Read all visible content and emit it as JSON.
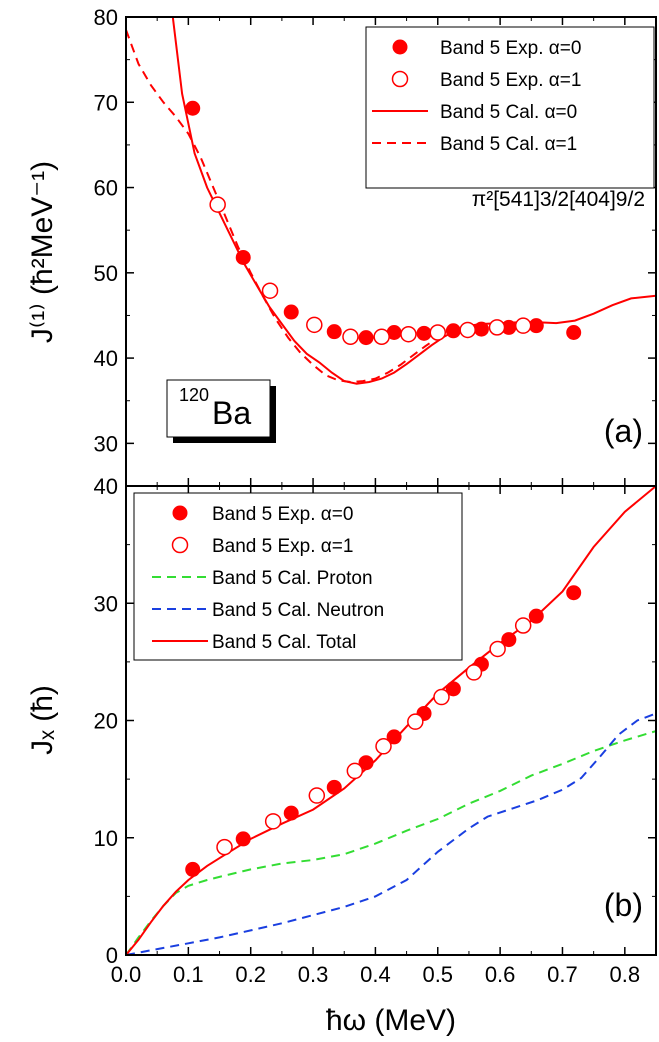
{
  "chart_data": [
    {
      "id": "panel-a",
      "type": "scatter",
      "panel_label": "(a)",
      "nucleus_mass": "120",
      "nucleus_symbol": "Ba",
      "configuration_label": "π²[541]3/2[404]9/2",
      "ylabel": "J⁽¹⁾ (ħ²MeV⁻¹)",
      "xlim": [
        0.0,
        0.85
      ],
      "ylim": [
        25,
        80
      ],
      "yticks": [
        30,
        40,
        50,
        60,
        70,
        80
      ],
      "legend_position": "top-right",
      "series": [
        {
          "name": "Band 5 Exp. α=0",
          "kind": "filled-circle",
          "color": "#ff0000",
          "x": [
            0.107,
            0.188,
            0.265,
            0.334,
            0.385,
            0.43,
            0.478,
            0.525,
            0.57,
            0.614,
            0.658,
            0.718
          ],
          "y": [
            69.3,
            51.8,
            45.4,
            43.1,
            42.4,
            43.0,
            42.9,
            43.2,
            43.4,
            43.6,
            43.8,
            43.0
          ]
        },
        {
          "name": "Band 5 Exp. α=1",
          "kind": "open-circle",
          "color": "#ff0000",
          "x": [
            0.147,
            0.231,
            0.302,
            0.36,
            0.41,
            0.453,
            0.5,
            0.548,
            0.595,
            0.637
          ],
          "y": [
            58.0,
            47.9,
            43.9,
            42.5,
            42.5,
            42.8,
            43.0,
            43.3,
            43.6,
            43.8
          ]
        },
        {
          "name": "Band 5 Cal.  α=0",
          "kind": "solid-line",
          "color": "#ff0000",
          "x": [
            0.075,
            0.09,
            0.11,
            0.13,
            0.15,
            0.17,
            0.19,
            0.21,
            0.23,
            0.25,
            0.27,
            0.29,
            0.31,
            0.33,
            0.35,
            0.37,
            0.39,
            0.41,
            0.43,
            0.45,
            0.47,
            0.49,
            0.51,
            0.53,
            0.55,
            0.57,
            0.6,
            0.63,
            0.66,
            0.69,
            0.72,
            0.75,
            0.78,
            0.81,
            0.85
          ],
          "y": [
            80.0,
            71.0,
            64.0,
            60.0,
            57.0,
            54.0,
            51.0,
            48.5,
            46.0,
            44.0,
            42.0,
            40.5,
            39.5,
            38.3,
            37.3,
            37.0,
            37.2,
            37.6,
            38.3,
            39.3,
            40.4,
            41.5,
            42.5,
            43.3,
            43.8,
            44.0,
            44.1,
            44.2,
            44.2,
            44.1,
            44.4,
            45.2,
            46.2,
            47.0,
            47.3
          ]
        },
        {
          "name": "Band 5 Cal.  α=1",
          "kind": "dashed-line",
          "color": "#ff0000",
          "x": [
            0.0,
            0.01,
            0.02,
            0.04,
            0.06,
            0.08,
            0.1,
            0.12,
            0.14,
            0.16,
            0.18,
            0.2,
            0.22,
            0.24,
            0.26,
            0.28,
            0.3,
            0.32,
            0.34,
            0.36,
            0.38,
            0.4,
            0.42,
            0.44,
            0.46,
            0.48,
            0.5,
            0.52,
            0.55,
            0.58,
            0.61
          ],
          "y": [
            78.5,
            76.5,
            74.5,
            72.0,
            70.0,
            68.3,
            66.3,
            63.5,
            60.0,
            56.5,
            53.0,
            50.0,
            47.2,
            44.6,
            42.4,
            40.6,
            39.2,
            38.0,
            37.4,
            37.2,
            37.3,
            37.6,
            38.3,
            39.2,
            40.3,
            41.4,
            42.4,
            43.2,
            43.8,
            44.1,
            44.2
          ]
        }
      ]
    },
    {
      "id": "panel-b",
      "type": "scatter",
      "panel_label": "(b)",
      "xlabel": "ħω  (MeV)",
      "ylabel": "Jₓ (ħ)",
      "xlim": [
        0.0,
        0.85
      ],
      "ylim": [
        0,
        40
      ],
      "xticks": [
        0.0,
        0.1,
        0.2,
        0.3,
        0.4,
        0.5,
        0.6,
        0.7,
        0.8
      ],
      "yticks": [
        0,
        10,
        20,
        30,
        40
      ],
      "legend_position": "top-left",
      "series": [
        {
          "name": "Band 5 Exp. α=0",
          "kind": "filled-circle",
          "color": "#ff0000",
          "x": [
            0.107,
            0.188,
            0.265,
            0.334,
            0.385,
            0.43,
            0.478,
            0.525,
            0.57,
            0.614,
            0.658,
            0.718
          ],
          "y": [
            7.3,
            9.9,
            12.1,
            14.3,
            16.4,
            18.6,
            20.6,
            22.7,
            24.8,
            26.9,
            28.9,
            30.9
          ]
        },
        {
          "name": "Band 5 Exp. α=1",
          "kind": "open-circle",
          "color": "#ff0000",
          "x": [
            0.158,
            0.236,
            0.306,
            0.367,
            0.413,
            0.464,
            0.506,
            0.558,
            0.596,
            0.637
          ],
          "y": [
            9.2,
            11.4,
            13.6,
            15.7,
            17.8,
            19.9,
            22.0,
            24.1,
            26.1,
            28.1
          ]
        },
        {
          "name": "Band 5 Cal. Proton",
          "kind": "dashed-line",
          "color": "#33dd33",
          "x": [
            0.0,
            0.02,
            0.04,
            0.06,
            0.08,
            0.1,
            0.13,
            0.16,
            0.2,
            0.25,
            0.3,
            0.35,
            0.4,
            0.45,
            0.5,
            0.55,
            0.6,
            0.65,
            0.7,
            0.75,
            0.8,
            0.85
          ],
          "y": [
            0.0,
            1.5,
            2.9,
            4.2,
            5.3,
            5.9,
            6.4,
            6.8,
            7.3,
            7.8,
            8.1,
            8.6,
            9.5,
            10.6,
            11.6,
            12.9,
            14.0,
            15.3,
            16.3,
            17.4,
            18.3,
            19.1
          ]
        },
        {
          "name": "Band 5 Cal. Neutron",
          "kind": "dashed-line",
          "color": "#1a3fe0",
          "x": [
            0.0,
            0.05,
            0.1,
            0.15,
            0.2,
            0.25,
            0.3,
            0.35,
            0.4,
            0.45,
            0.5,
            0.55,
            0.58,
            0.62,
            0.66,
            0.7,
            0.73,
            0.76,
            0.79,
            0.82,
            0.85
          ],
          "y": [
            0.0,
            0.5,
            1.0,
            1.5,
            2.1,
            2.7,
            3.4,
            4.1,
            5.0,
            6.4,
            8.8,
            10.8,
            11.8,
            12.5,
            13.2,
            14.1,
            15.1,
            16.9,
            18.8,
            20.0,
            20.6
          ]
        },
        {
          "name": "Band 5 Cal. Total",
          "kind": "solid-line",
          "color": "#ff0000",
          "x": [
            0.0,
            0.02,
            0.04,
            0.06,
            0.08,
            0.1,
            0.13,
            0.16,
            0.2,
            0.25,
            0.3,
            0.35,
            0.4,
            0.45,
            0.5,
            0.55,
            0.6,
            0.65,
            0.7,
            0.75,
            0.8,
            0.85
          ],
          "y": [
            0.0,
            1.3,
            2.8,
            4.2,
            5.4,
            6.4,
            7.6,
            8.6,
            9.9,
            11.2,
            12.4,
            14.2,
            16.6,
            19.5,
            22.3,
            24.5,
            26.6,
            28.5,
            31.0,
            34.8,
            37.8,
            40.0
          ]
        }
      ]
    }
  ]
}
